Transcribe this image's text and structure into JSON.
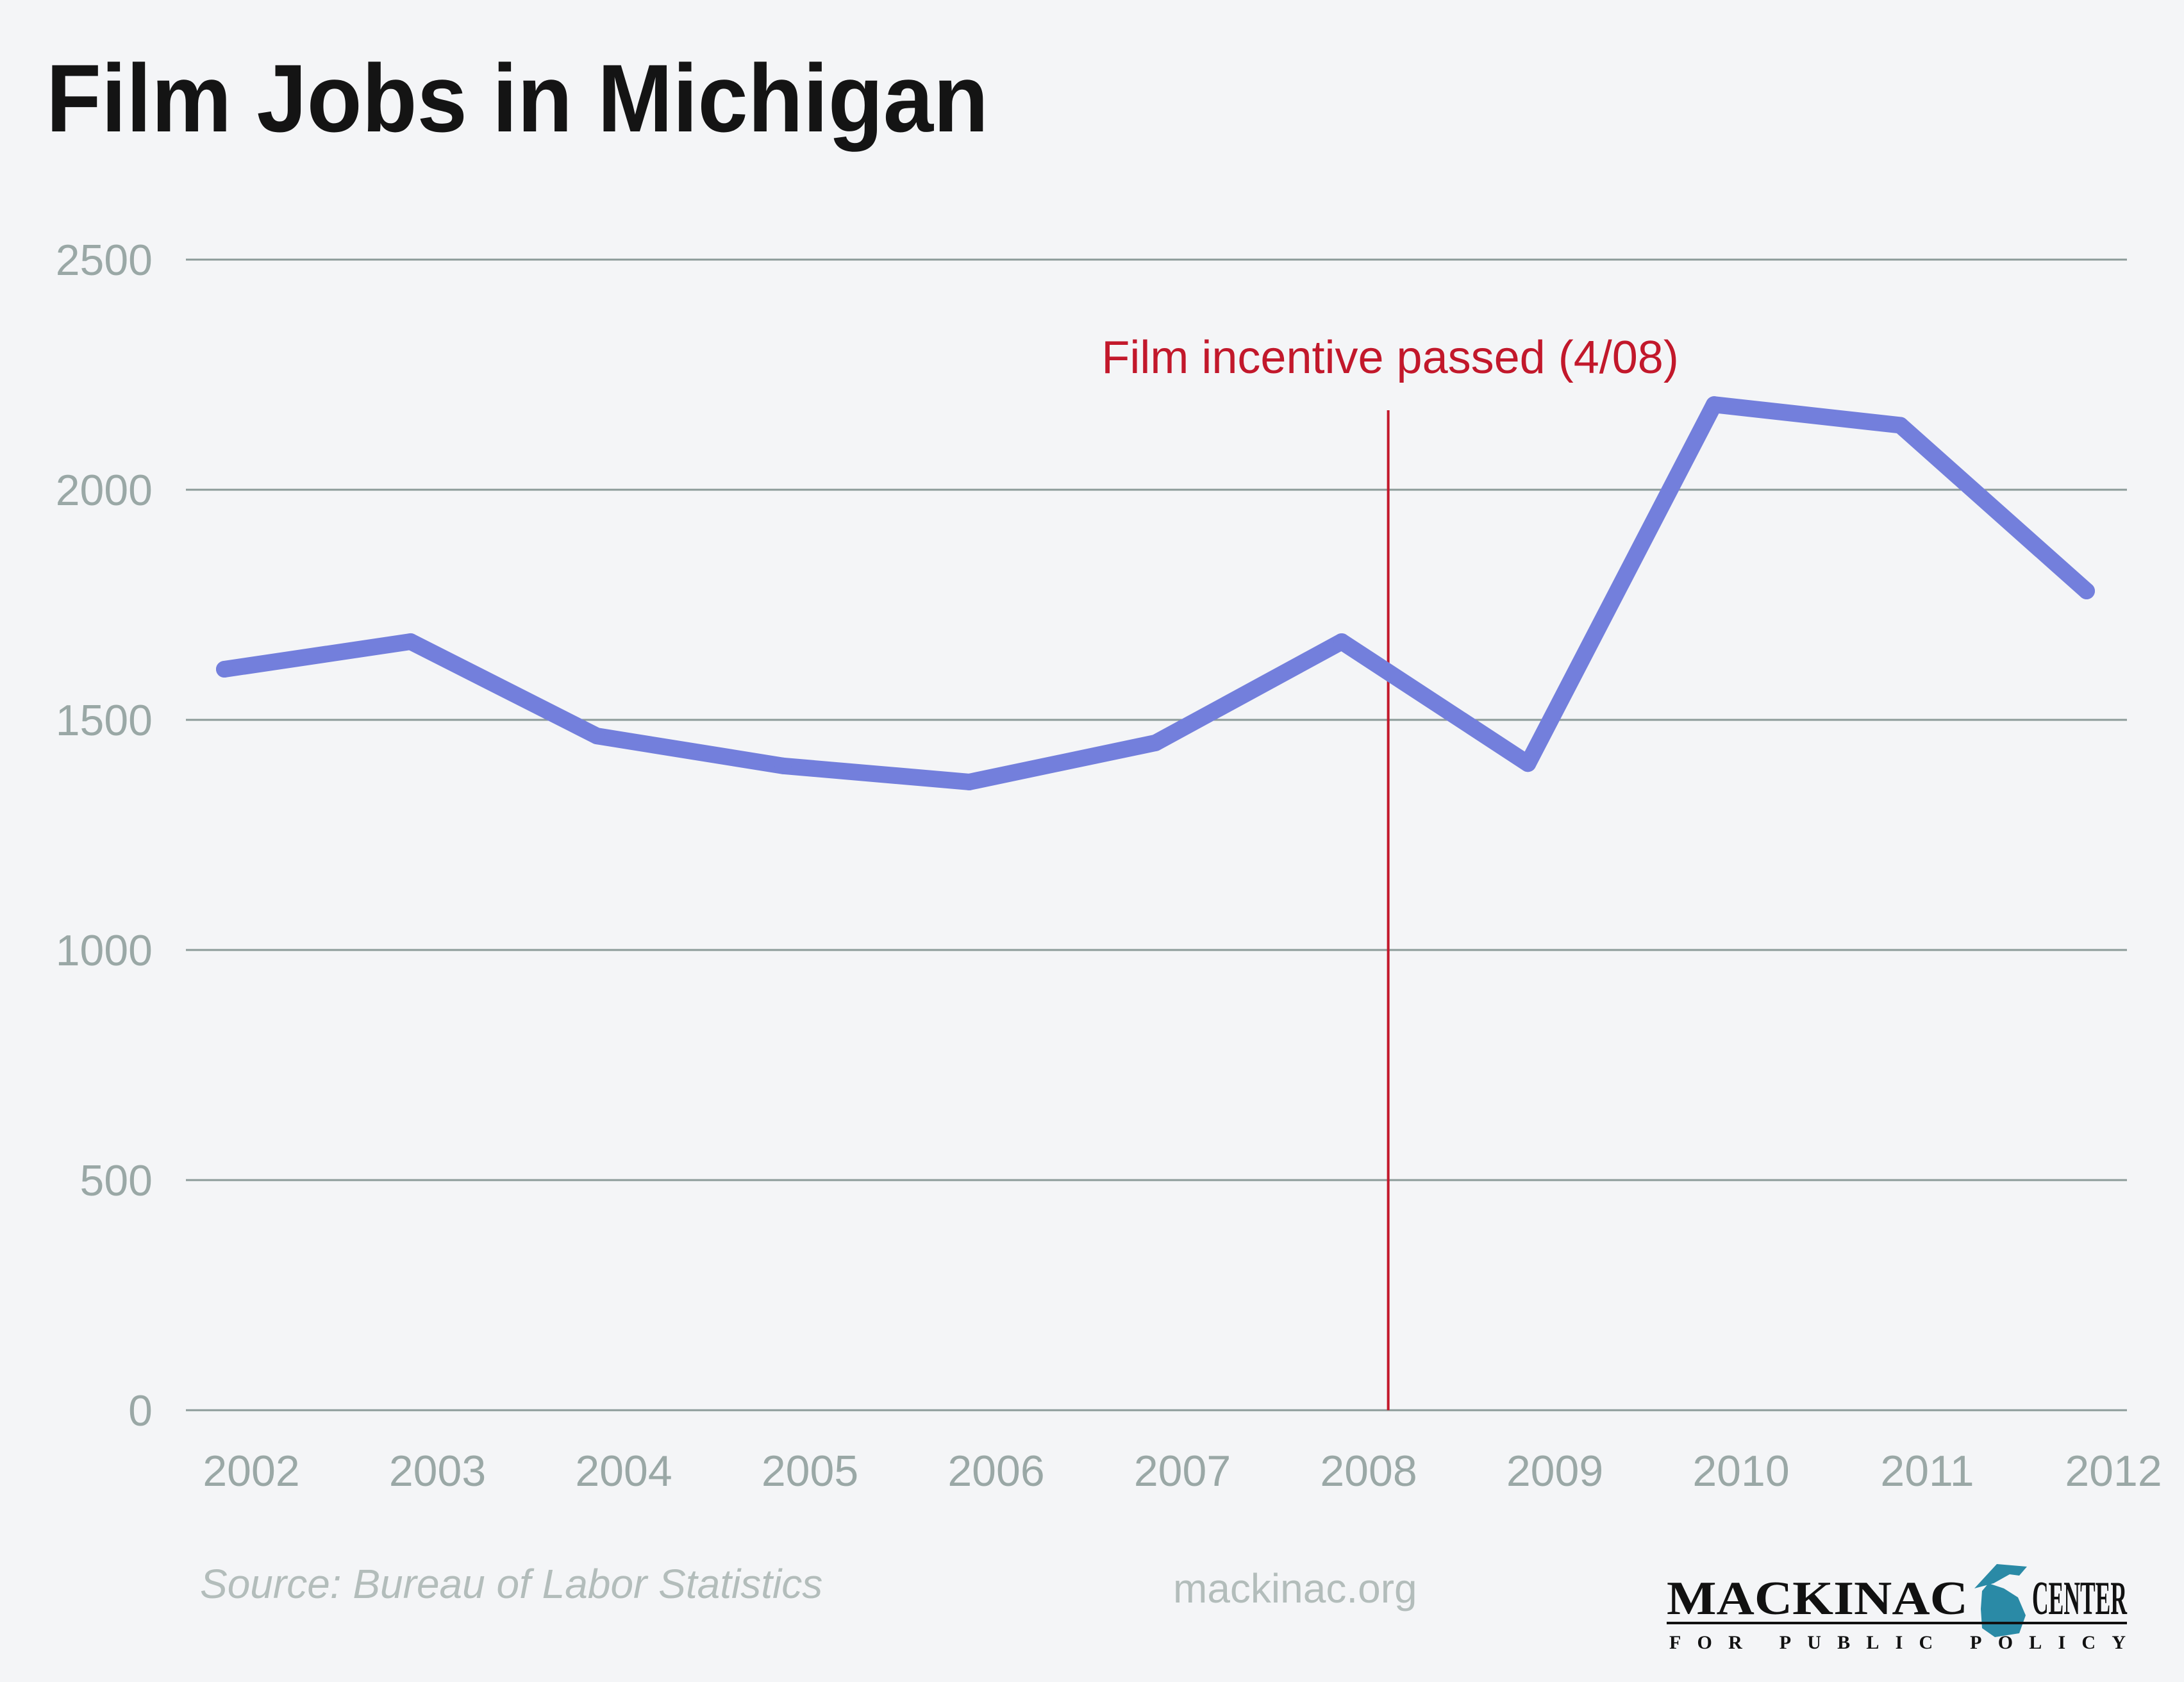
{
  "colors": {
    "line": "#737fdc",
    "annotation": "#c2182b",
    "grid": "#8c9b99",
    "tick": "#9aa8a6",
    "title": "#141414",
    "logo_accent": "#2a8aa6"
  },
  "chart_data": {
    "type": "line",
    "title": "Film Jobs in Michigan",
    "xlabel": "",
    "ylabel": "",
    "categories": [
      "2002",
      "2003",
      "2004",
      "2005",
      "2006",
      "2007",
      "2008",
      "2009",
      "2010",
      "2011",
      "2012"
    ],
    "series": [
      {
        "name": "Film jobs",
        "values": [
          1610,
          1670,
          1465,
          1400,
          1365,
          1450,
          1670,
          1405,
          2185,
          2140,
          1780
        ]
      }
    ],
    "ylim": [
      0,
      2500
    ],
    "yticks": [
      "0",
      "500",
      "1000",
      "1500",
      "2000",
      "2500"
    ],
    "ytick_values": [
      0,
      500,
      1000,
      1500,
      2000,
      2500
    ],
    "grid": true,
    "annotation": {
      "label": "Film incentive passed (4/08)",
      "x_value": 2008.25
    }
  },
  "footer": {
    "source": "Source: Bureau of Labor Statistics",
    "site": "mackinac.org",
    "logo_top": "MACKINAC CENTER",
    "logo_sub": "FOR PUBLIC POLICY"
  }
}
